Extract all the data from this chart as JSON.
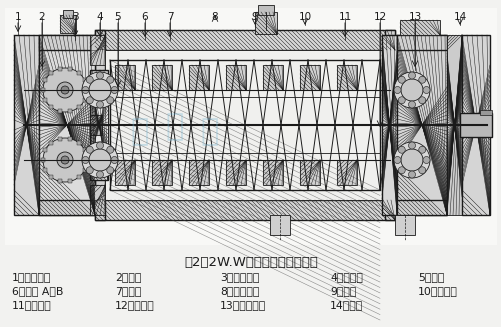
{
  "title": "图2：2W.W型双螺杆泵结构简图",
  "bg_color": "#f2f2f0",
  "legend_lines": [
    [
      "1、齿轮箱盖",
      "2、齿轮",
      "3、滚动轴承",
      "4、后支架",
      "5、密封"
    ],
    [
      "6、螺套 A、B",
      "7、泵体",
      "8、调节螺栓",
      "9、衬套",
      "10、主动轴"
    ],
    [
      "11、前支架",
      "12、从动轴",
      "13、滚动轴承",
      "14、压盖",
      ""
    ]
  ],
  "part_labels": [
    "1",
    "2",
    "3",
    "4",
    "5",
    "6",
    "7",
    "8",
    "9",
    "10",
    "11",
    "12",
    "13",
    "14"
  ],
  "text_color": "#1a1a1a",
  "title_fontsize": 9.5,
  "legend_fontsize": 7.8,
  "watermark_color": "#7ab8d4",
  "watermark_alpha": 0.35
}
